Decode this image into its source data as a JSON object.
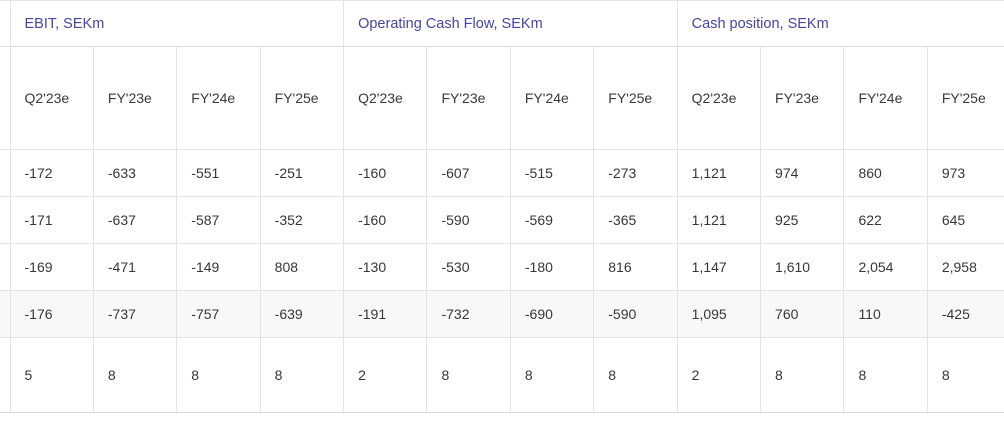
{
  "table": {
    "sections": [
      {
        "title": "EBIT, SEKm",
        "columns": [
          "Q2'23e",
          "FY'23e",
          "FY'24e",
          "FY'25e"
        ],
        "rows": [
          [
            "-172",
            "-633",
            "-551",
            "-251"
          ],
          [
            "-171",
            "-637",
            "-587",
            "-352"
          ],
          [
            "-169",
            "-471",
            "-149",
            "808"
          ],
          [
            "-176",
            "-737",
            "-757",
            "-639"
          ],
          [
            "5",
            "8",
            "8",
            "8"
          ]
        ]
      },
      {
        "title": "Operating Cash Flow, SEKm",
        "columns": [
          "Q2'23e",
          "FY'23e",
          "FY'24e",
          "FY'25e"
        ],
        "rows": [
          [
            "-160",
            "-607",
            "-515",
            "-273"
          ],
          [
            "-160",
            "-590",
            "-569",
            "-365"
          ],
          [
            "-130",
            "-530",
            "-180",
            "816"
          ],
          [
            "-191",
            "-732",
            "-690",
            "-590"
          ],
          [
            "2",
            "8",
            "8",
            "8"
          ]
        ]
      },
      {
        "title": "Cash position, SEKm",
        "columns": [
          "Q2'23e",
          "FY'23e",
          "FY'24e",
          "FY'25e"
        ],
        "rows": [
          [
            "1,121",
            "974",
            "860",
            "973"
          ],
          [
            "1,121",
            "925",
            "622",
            "645"
          ],
          [
            "1,147",
            "1,610",
            "2,054",
            "2,958"
          ],
          [
            "1,095",
            "760",
            "110",
            "-425"
          ],
          [
            "2",
            "8",
            "8",
            "8"
          ]
        ]
      }
    ]
  },
  "colors": {
    "section_title": "#4646a0",
    "cell_text": "#373737",
    "border": "#e4e4e4",
    "shaded_row_bg": "#f8f8f8",
    "background": "#ffffff"
  },
  "chart_data": {
    "type": "table",
    "sections": [
      {
        "title": "EBIT, SEKm",
        "columns": [
          "Q2'23e",
          "FY'23e",
          "FY'24e",
          "FY'25e"
        ],
        "rows": [
          [
            -172,
            -633,
            -551,
            -251
          ],
          [
            -171,
            -637,
            -587,
            -352
          ],
          [
            -169,
            -471,
            -149,
            808
          ],
          [
            -176,
            -737,
            -757,
            -639
          ],
          [
            5,
            8,
            8,
            8
          ]
        ]
      },
      {
        "title": "Operating Cash Flow, SEKm",
        "columns": [
          "Q2'23e",
          "FY'23e",
          "FY'24e",
          "FY'25e"
        ],
        "rows": [
          [
            -160,
            -607,
            -515,
            -273
          ],
          [
            -160,
            -590,
            -569,
            -365
          ],
          [
            -130,
            -530,
            -180,
            816
          ],
          [
            -191,
            -732,
            -690,
            -590
          ],
          [
            2,
            8,
            8,
            8
          ]
        ]
      },
      {
        "title": "Cash position, SEKm",
        "columns": [
          "Q2'23e",
          "FY'23e",
          "FY'24e",
          "FY'25e"
        ],
        "rows": [
          [
            1121,
            974,
            860,
            973
          ],
          [
            1121,
            925,
            622,
            645
          ],
          [
            1147,
            1610,
            2054,
            2958
          ],
          [
            1095,
            760,
            110,
            -425
          ],
          [
            2,
            8,
            8,
            8
          ]
        ]
      }
    ]
  }
}
